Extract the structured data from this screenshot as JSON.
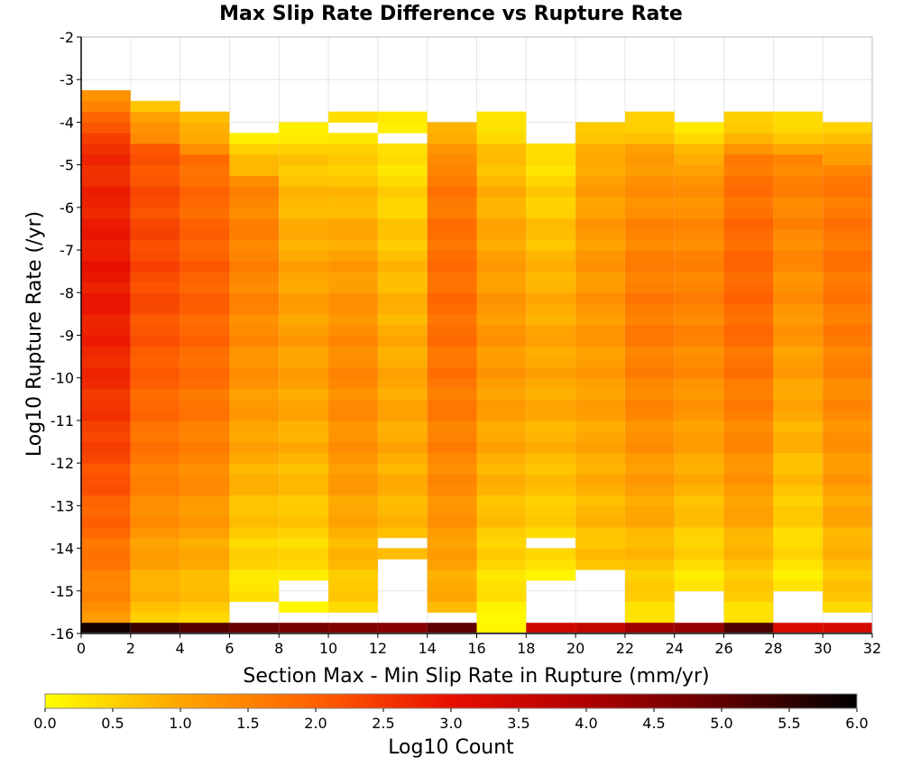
{
  "chart_data": {
    "type": "heatmap",
    "title": "Max Slip Rate Difference vs Rupture Rate",
    "xlabel": "Section Max - Min Slip Rate in Rupture (mm/yr)",
    "ylabel": "Log10 Rupture Rate (/yr)",
    "xlim": [
      0,
      32
    ],
    "ylim": [
      -16,
      -2
    ],
    "x_ticks": [
      0,
      2,
      4,
      6,
      8,
      10,
      12,
      14,
      16,
      18,
      20,
      22,
      24,
      26,
      28,
      30,
      32
    ],
    "y_ticks": [
      -2,
      -3,
      -4,
      -5,
      -6,
      -7,
      -8,
      -9,
      -10,
      -11,
      -12,
      -13,
      -14,
      -15,
      -16
    ],
    "x_bin_width": 2,
    "y_bin_width": 0.25,
    "grid": true,
    "colorbar": {
      "label": "Log10 Count",
      "range": [
        0.0,
        6.0
      ],
      "ticks": [
        "0.0",
        "0.5",
        "1.0",
        "1.5",
        "2.0",
        "2.5",
        "3.0",
        "3.5",
        "4.0",
        "4.5",
        "5.0",
        "5.5",
        "6.0"
      ],
      "colormap": [
        "#ffff00",
        "#ffa500",
        "#ff6000",
        "#e81000",
        "#b00000",
        "#600000",
        "#000000"
      ]
    },
    "columns": [
      {
        "x": 0,
        "top": -3.25,
        "bottom": -15.75,
        "peak": 2.9,
        "peak_y": -7.5,
        "low": 1.2,
        "bottom_value": 5.8,
        "gaps": []
      },
      {
        "x": 2,
        "top": -3.5,
        "bottom": -15.75,
        "peak": 2.3,
        "peak_y": -7.0,
        "low": 0.6,
        "bottom_value": 5.4,
        "gaps": []
      },
      {
        "x": 4,
        "top": -3.75,
        "bottom": -15.75,
        "peak": 2.0,
        "peak_y": -7.5,
        "low": 0.5,
        "bottom_value": 5.1,
        "gaps": []
      },
      {
        "x": 6,
        "top": -4.25,
        "bottom": -15.25,
        "peak": 1.5,
        "peak_y": -7.0,
        "low": 0.2,
        "bottom_value": 4.9,
        "gaps": []
      },
      {
        "x": 8,
        "top": -4.0,
        "bottom": -15.5,
        "peak": 1.1,
        "peak_y": -9.0,
        "low": 0.1,
        "bottom_value": 4.7,
        "gaps": [
          [
            -14.75,
            -15.25
          ]
        ]
      },
      {
        "x": 10,
        "top": -3.75,
        "bottom": -15.5,
        "peak": 1.4,
        "peak_y": -10.0,
        "low": 0.2,
        "bottom_value": 4.6,
        "gaps": [
          [
            -4.0,
            -4.25
          ]
        ]
      },
      {
        "x": 12,
        "top": -3.75,
        "bottom": -15.5,
        "peak": 1.0,
        "peak_y": -10.5,
        "low": 0.1,
        "bottom_value": 4.5,
        "gaps": [
          [
            -4.25,
            -4.5
          ],
          [
            -13.75,
            -14.0
          ],
          [
            -14.25,
            -15.5
          ]
        ]
      },
      {
        "x": 14,
        "top": -4.0,
        "bottom": -15.5,
        "peak": 1.8,
        "peak_y": -8.0,
        "low": 0.8,
        "bottom_value": 5.0,
        "gaps": []
      },
      {
        "x": 16,
        "top": -3.75,
        "bottom": -15.75,
        "peak": 1.2,
        "peak_y": -9.0,
        "low": 0.1,
        "bottom_value": 0.1,
        "gaps": []
      },
      {
        "x": 18,
        "top": -4.5,
        "bottom": -14.75,
        "peak": 1.0,
        "peak_y": -9.5,
        "low": 0.2,
        "bottom_value": 3.5,
        "gaps": [
          [
            -13.75,
            -14.0
          ]
        ]
      },
      {
        "x": 20,
        "top": -4.0,
        "bottom": -14.5,
        "peak": 1.2,
        "peak_y": -8.0,
        "low": 0.6,
        "bottom_value": 3.7,
        "gaps": []
      },
      {
        "x": 22,
        "top": -3.75,
        "bottom": -15.75,
        "peak": 1.6,
        "peak_y": -8.5,
        "low": 0.3,
        "bottom_value": 4.2,
        "gaps": []
      },
      {
        "x": 24,
        "top": -4.0,
        "bottom": -15.0,
        "peak": 1.5,
        "peak_y": -8.0,
        "low": 0.2,
        "bottom_value": 4.3,
        "gaps": []
      },
      {
        "x": 26,
        "top": -3.75,
        "bottom": -15.75,
        "peak": 1.9,
        "peak_y": -7.5,
        "low": 0.3,
        "bottom_value": 5.2,
        "gaps": []
      },
      {
        "x": 28,
        "top": -3.75,
        "bottom": -15.0,
        "peak": 1.5,
        "peak_y": -5.0,
        "low": 0.2,
        "bottom_value": 3.3,
        "gaps": []
      },
      {
        "x": 30,
        "top": -4.0,
        "bottom": -15.5,
        "peak": 1.7,
        "peak_y": -7.0,
        "low": 0.5,
        "bottom_value": 3.4,
        "gaps": []
      }
    ]
  }
}
